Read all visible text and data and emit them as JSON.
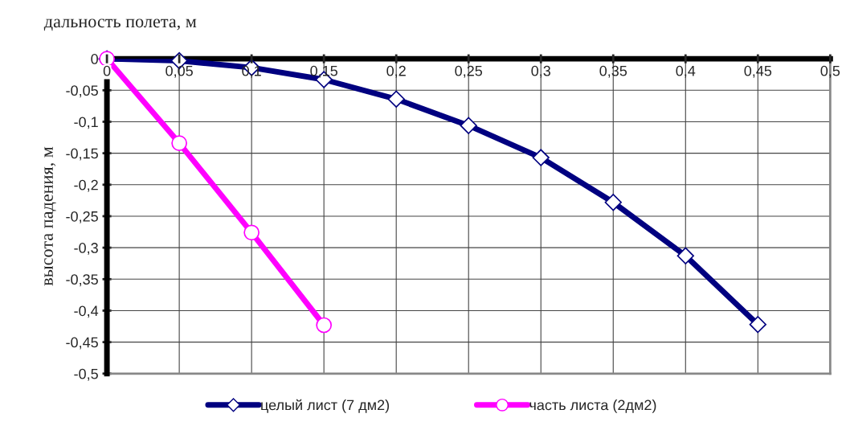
{
  "chart_data": {
    "type": "line",
    "xlabel": "дальность полета, м",
    "ylabel": "высота падения, м",
    "series": [
      {
        "name": "целый лист (7 дм2)",
        "color": "#000080",
        "marker": "diamond",
        "x": [
          0,
          0.05,
          0.1,
          0.15,
          0.2,
          0.25,
          0.3,
          0.35,
          0.4,
          0.45
        ],
        "values": [
          0,
          -0.003,
          -0.014,
          -0.033,
          -0.064,
          -0.106,
          -0.157,
          -0.228,
          -0.313,
          -0.422
        ]
      },
      {
        "name": "часть листа (2дм2)",
        "color": "#ff00ff",
        "marker": "circle",
        "x": [
          0,
          0.05,
          0.1,
          0.15
        ],
        "values": [
          0,
          -0.134,
          -0.276,
          -0.423
        ]
      }
    ],
    "xlim": [
      0,
      0.5
    ],
    "ylim": [
      -0.5,
      0
    ],
    "xticks": [
      0,
      {
        "value": 0.05,
        "label": "0,05"
      },
      {
        "value": 0.1,
        "label": "0,1"
      },
      {
        "value": 0.15,
        "label": "0,15"
      },
      {
        "value": 0.2,
        "label": "0,2"
      },
      {
        "value": 0.25,
        "label": "0,25"
      },
      {
        "value": 0.3,
        "label": "0,3"
      },
      {
        "value": 0.35,
        "label": "0,35"
      },
      {
        "value": 0.4,
        "label": "0,4"
      },
      {
        "value": 0.45,
        "label": "0,45"
      },
      {
        "value": 0.5,
        "label": "0,5"
      }
    ],
    "yticks": [
      0,
      {
        "value": -0.05,
        "label": "-0,05"
      },
      {
        "value": -0.1,
        "label": "-0,1"
      },
      {
        "value": -0.15,
        "label": "-0,15"
      },
      {
        "value": -0.2,
        "label": "-0,2"
      },
      {
        "value": -0.25,
        "label": "-0,25"
      },
      {
        "value": -0.3,
        "label": "-0,3"
      },
      {
        "value": -0.35,
        "label": "-0,35"
      },
      {
        "value": -0.4,
        "label": "-0,4"
      },
      {
        "value": -0.45,
        "label": "-0,45"
      },
      {
        "value": -0.5,
        "label": "-0,5"
      }
    ],
    "grid": true,
    "legend": "bottom",
    "line_style": "solid"
  }
}
